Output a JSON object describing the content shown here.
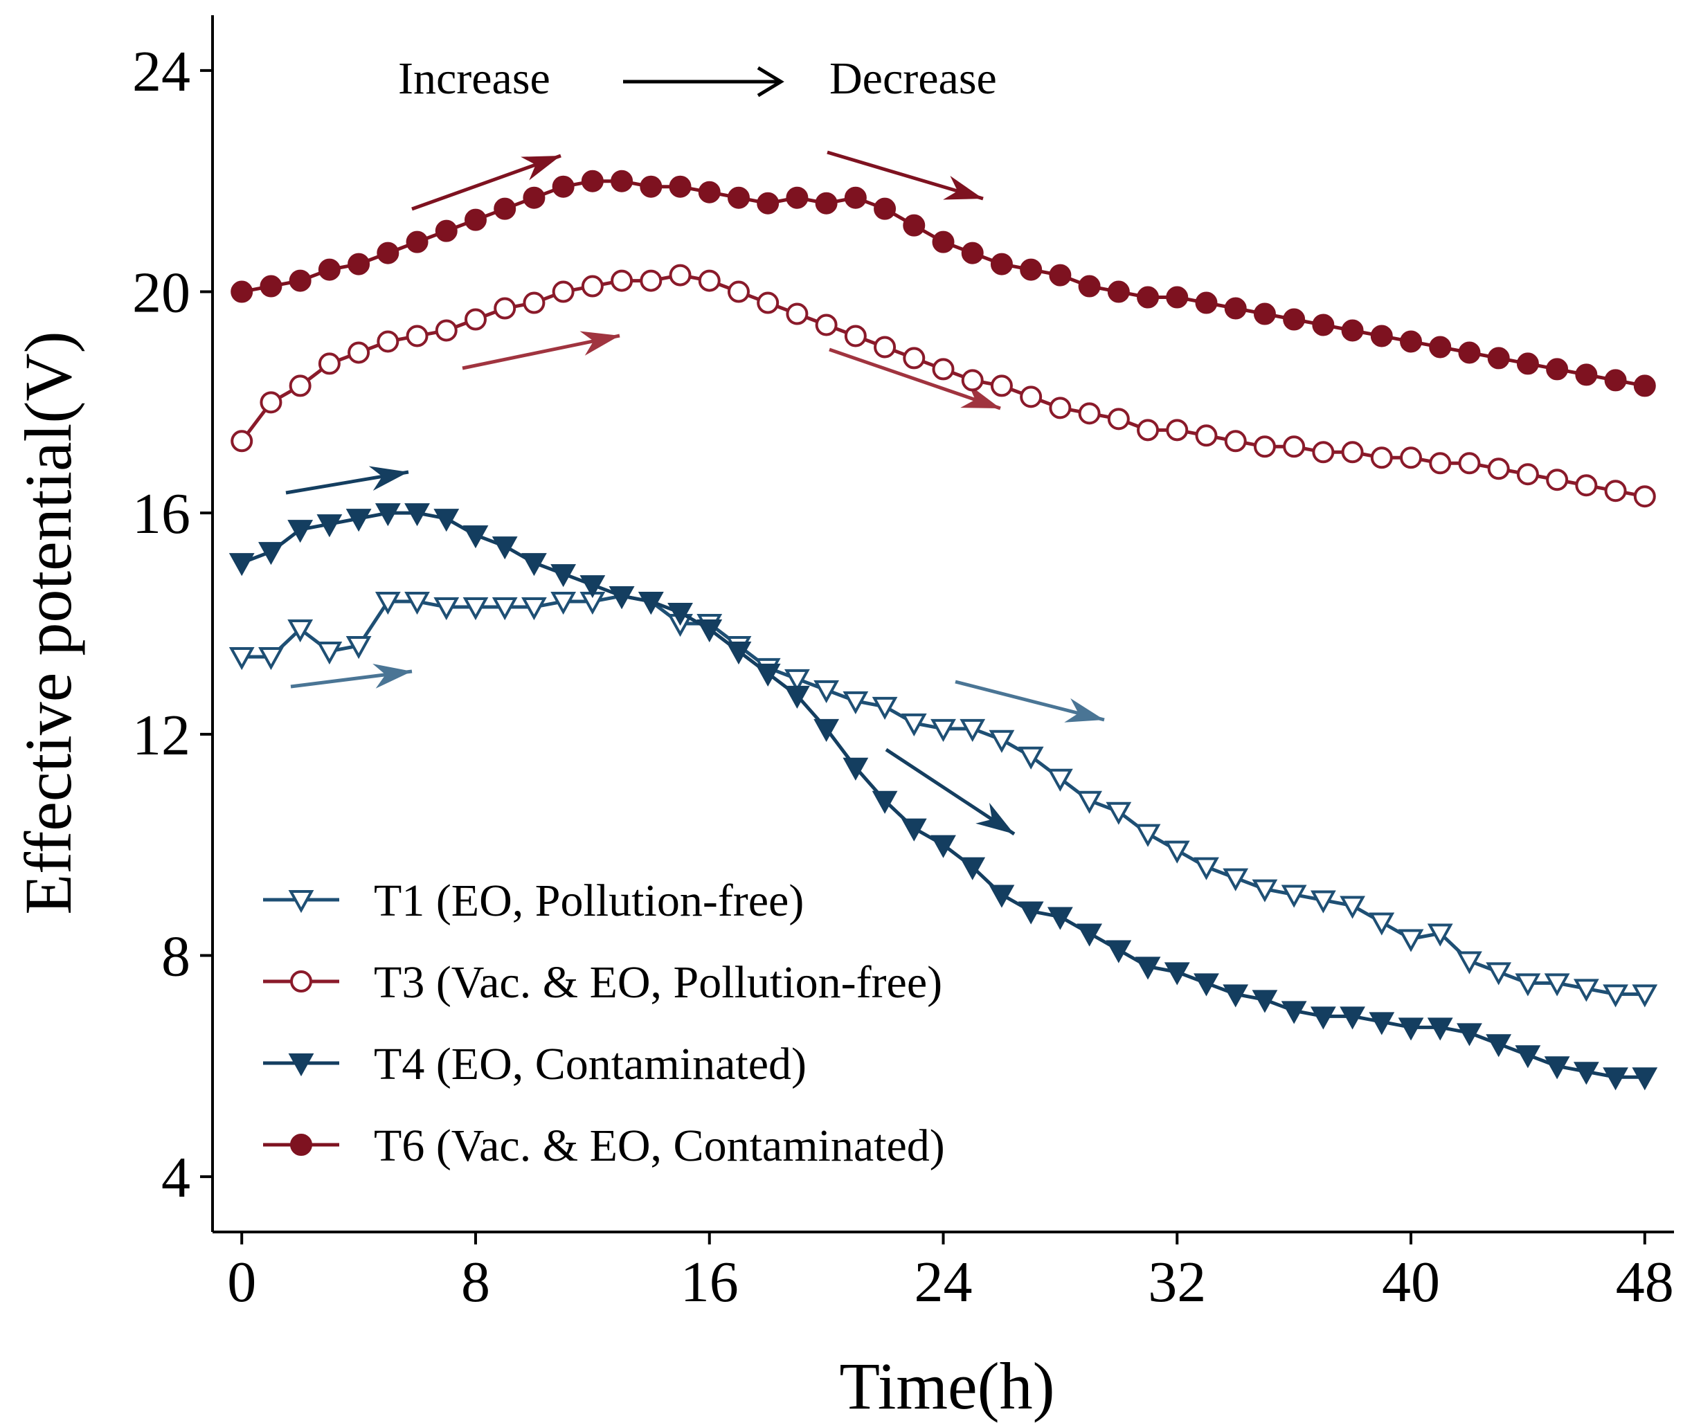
{
  "chart_data": {
    "type": "line",
    "title": "",
    "xlabel": "Time(h)",
    "ylabel": "Effective potential(V)",
    "xlim": [
      -1,
      49
    ],
    "ylim": [
      3,
      25
    ],
    "xticks": [
      0,
      8,
      16,
      24,
      32,
      40,
      48
    ],
    "yticks": [
      4,
      8,
      12,
      16,
      20,
      24
    ],
    "grid": false,
    "legend_position": "bottom-left",
    "annotations": {
      "increase_label": "Increase",
      "decrease_label": "Decrease"
    },
    "series": [
      {
        "name": "T1 (EO, Pollution-free)",
        "color": "#1e4f74",
        "marker": "triangle-down-open",
        "x": [
          0,
          1,
          2,
          3,
          4,
          5,
          6,
          7,
          8,
          9,
          10,
          11,
          12,
          13,
          14,
          15,
          16,
          17,
          18,
          19,
          20,
          21,
          22,
          23,
          24,
          25,
          26,
          27,
          28,
          29,
          30,
          31,
          32,
          33,
          34,
          35,
          36,
          37,
          38,
          39,
          40,
          41,
          42,
          43,
          44,
          45,
          46,
          47,
          48
        ],
        "y": [
          13.4,
          13.4,
          13.9,
          13.5,
          13.6,
          14.4,
          14.4,
          14.3,
          14.3,
          14.3,
          14.3,
          14.4,
          14.4,
          14.5,
          14.4,
          14.0,
          14.0,
          13.6,
          13.2,
          13.0,
          12.8,
          12.6,
          12.5,
          12.2,
          12.1,
          12.1,
          11.9,
          11.6,
          11.2,
          10.8,
          10.6,
          10.2,
          9.9,
          9.6,
          9.4,
          9.2,
          9.1,
          9.0,
          8.9,
          8.6,
          8.3,
          8.4,
          7.9,
          7.7,
          7.5,
          7.5,
          7.4,
          7.3,
          7.3
        ]
      },
      {
        "name": "T3 (Vac. & EO, Pollution-free)",
        "color": "#8a1a2a",
        "marker": "circle-open",
        "x": [
          0,
          1,
          2,
          3,
          4,
          5,
          6,
          7,
          8,
          9,
          10,
          11,
          12,
          13,
          14,
          15,
          16,
          17,
          18,
          19,
          20,
          21,
          22,
          23,
          24,
          25,
          26,
          27,
          28,
          29,
          30,
          31,
          32,
          33,
          34,
          35,
          36,
          37,
          38,
          39,
          40,
          41,
          42,
          43,
          44,
          45,
          46,
          47,
          48
        ],
        "y": [
          17.3,
          18.0,
          18.3,
          18.7,
          18.9,
          19.1,
          19.2,
          19.3,
          19.5,
          19.7,
          19.8,
          20.0,
          20.1,
          20.2,
          20.2,
          20.3,
          20.2,
          20.0,
          19.8,
          19.6,
          19.4,
          19.2,
          19.0,
          18.8,
          18.6,
          18.4,
          18.3,
          18.1,
          17.9,
          17.8,
          17.7,
          17.5,
          17.5,
          17.4,
          17.3,
          17.2,
          17.2,
          17.1,
          17.1,
          17.0,
          17.0,
          16.9,
          16.9,
          16.8,
          16.7,
          16.6,
          16.5,
          16.4,
          16.3
        ]
      },
      {
        "name": "T4 (EO, Contaminated)",
        "color": "#143e60",
        "marker": "triangle-down-filled",
        "x": [
          0,
          1,
          2,
          3,
          4,
          5,
          6,
          7,
          8,
          9,
          10,
          11,
          12,
          13,
          14,
          15,
          16,
          17,
          18,
          19,
          20,
          21,
          22,
          23,
          24,
          25,
          26,
          27,
          28,
          29,
          30,
          31,
          32,
          33,
          34,
          35,
          36,
          37,
          38,
          39,
          40,
          41,
          42,
          43,
          44,
          45,
          46,
          47,
          48
        ],
        "y": [
          15.1,
          15.3,
          15.7,
          15.8,
          15.9,
          16.0,
          16.0,
          15.9,
          15.6,
          15.4,
          15.1,
          14.9,
          14.7,
          14.5,
          14.4,
          14.2,
          13.9,
          13.5,
          13.1,
          12.7,
          12.1,
          11.4,
          10.8,
          10.3,
          10.0,
          9.6,
          9.1,
          8.8,
          8.7,
          8.4,
          8.1,
          7.8,
          7.7,
          7.5,
          7.3,
          7.2,
          7.0,
          6.9,
          6.9,
          6.8,
          6.7,
          6.7,
          6.6,
          6.4,
          6.2,
          6.0,
          5.9,
          5.8,
          5.8
        ]
      },
      {
        "name": "T6 (Vac. & EO, Contaminated)",
        "color": "#7e1220",
        "marker": "circle-filled",
        "x": [
          0,
          1,
          2,
          3,
          4,
          5,
          6,
          7,
          8,
          9,
          10,
          11,
          12,
          13,
          14,
          15,
          16,
          17,
          18,
          19,
          20,
          21,
          22,
          23,
          24,
          25,
          26,
          27,
          28,
          29,
          30,
          31,
          32,
          33,
          34,
          35,
          36,
          37,
          38,
          39,
          40,
          41,
          42,
          43,
          44,
          45,
          46,
          47,
          48
        ],
        "y": [
          20.0,
          20.1,
          20.2,
          20.4,
          20.5,
          20.7,
          20.9,
          21.1,
          21.3,
          21.5,
          21.7,
          21.9,
          22.0,
          22.0,
          21.9,
          21.9,
          21.8,
          21.7,
          21.6,
          21.7,
          21.6,
          21.7,
          21.5,
          21.2,
          20.9,
          20.7,
          20.5,
          20.4,
          20.3,
          20.1,
          20.0,
          19.9,
          19.9,
          19.8,
          19.7,
          19.6,
          19.5,
          19.4,
          19.3,
          19.2,
          19.1,
          19.0,
          18.9,
          18.8,
          18.7,
          18.6,
          18.5,
          18.4,
          18.3
        ]
      }
    ]
  }
}
